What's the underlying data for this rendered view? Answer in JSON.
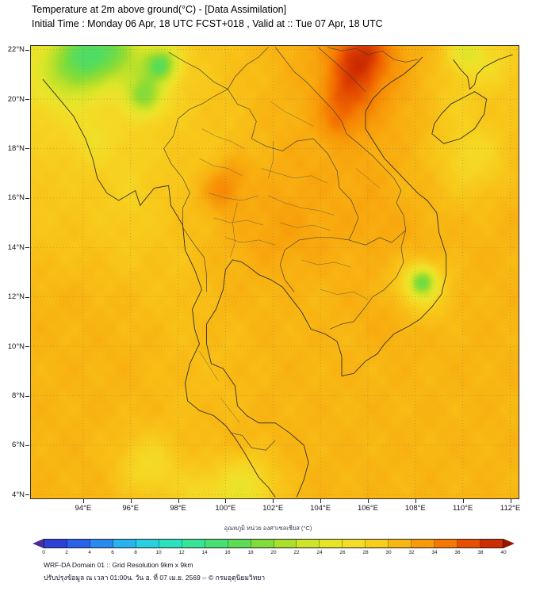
{
  "header": {
    "title": "Temperature at 2m above ground(°C) - [Data Assimilation]",
    "subtitle": "Initial Time : Monday 06 Apr, 18 UTC FCST+018 , Valid at :: Tue 07 Apr, 18 UTC"
  },
  "axes": {
    "lat": [
      {
        "label": "22°N",
        "value": 22
      },
      {
        "label": "20°N",
        "value": 20
      },
      {
        "label": "18°N",
        "value": 18
      },
      {
        "label": "16°N",
        "value": 16
      },
      {
        "label": "14°N",
        "value": 14
      },
      {
        "label": "12°N",
        "value": 12
      },
      {
        "label": "10°N",
        "value": 10
      },
      {
        "label": "8°N",
        "value": 8
      },
      {
        "label": "6°N",
        "value": 6
      },
      {
        "label": "4°N",
        "value": 4
      }
    ],
    "lon": [
      {
        "label": "94°E",
        "value": 94
      },
      {
        "label": "96°E",
        "value": 96
      },
      {
        "label": "98°E",
        "value": 98
      },
      {
        "label": "100°E",
        "value": 100
      },
      {
        "label": "102°E",
        "value": 102
      },
      {
        "label": "104°E",
        "value": 104
      },
      {
        "label": "106°E",
        "value": 106
      },
      {
        "label": "108°E",
        "value": 108
      },
      {
        "label": "110°E",
        "value": 110
      },
      {
        "label": "112°E",
        "value": 112
      }
    ]
  },
  "colorbar": {
    "label": "อุณหภูมิ หน่วย องศาเซลเซียส (°C)",
    "tick_labels": [
      "0",
      "2",
      "4",
      "6",
      "8",
      "10",
      "12",
      "14",
      "16",
      "18",
      "20",
      "22",
      "24",
      "26",
      "28",
      "30",
      "32",
      "34",
      "36",
      "38",
      "40"
    ],
    "under_color": "#4b2ca0",
    "over_color": "#9c1200"
  },
  "footer": {
    "line1": "WRF-DA Domain 01 :: Grid Resolution 9km x 9km",
    "line2": "ปรับปรุงข้อมูล ณ เวลา 01:00น. วัน อ. ที่ 07 เม.ย. 2569 -- © กรมอุตุนิยมวิทยา"
  },
  "chart_data": {
    "type": "heatmap",
    "title": "Temperature at 2m above ground (°C) - WRF-DA Domain 01",
    "units": "°C",
    "legend_position": "bottom",
    "lon_range": [
      91.8,
      112.35
    ],
    "lat_range": [
      3.85,
      22.15
    ],
    "value_range": [
      0,
      40
    ],
    "colormap_stops": [
      [
        0,
        "#3232c8"
      ],
      [
        2,
        "#2850e6"
      ],
      [
        4,
        "#2873f0"
      ],
      [
        6,
        "#28a0f0"
      ],
      [
        8,
        "#28c3ee"
      ],
      [
        10,
        "#28dcd2"
      ],
      [
        12,
        "#30e6aa"
      ],
      [
        14,
        "#3ce382"
      ],
      [
        16,
        "#50dc64"
      ],
      [
        18,
        "#6edc46"
      ],
      [
        20,
        "#96dc32"
      ],
      [
        22,
        "#bee12a"
      ],
      [
        24,
        "#dce628"
      ],
      [
        26,
        "#eee22a"
      ],
      [
        28,
        "#f6d723"
      ],
      [
        30,
        "#f8c318"
      ],
      [
        32,
        "#f8a90e"
      ],
      [
        34,
        "#f78c05"
      ],
      [
        36,
        "#f06400"
      ],
      [
        38,
        "#dc3c00"
      ],
      [
        40,
        "#be1e00"
      ]
    ],
    "grid": {
      "lons": [
        94,
        96,
        98,
        100,
        102,
        104,
        106,
        108,
        110,
        112
      ],
      "lats": [
        22,
        20,
        18,
        16,
        14,
        12,
        10,
        8,
        6,
        4
      ],
      "values": [
        [
          27.5,
          29,
          29,
          30,
          31,
          32,
          33.5,
          31.5,
          30,
          29.5
        ],
        [
          28,
          29,
          29,
          30,
          31,
          32,
          33.5,
          31.5,
          30.5,
          30
        ],
        [
          29,
          28.5,
          29.5,
          30,
          31,
          31.5,
          32,
          31,
          30,
          30.5
        ],
        [
          29.5,
          28.5,
          30,
          31,
          31,
          31,
          31.5,
          31,
          30.5,
          31
        ],
        [
          30,
          29.5,
          30,
          31,
          31.5,
          31.5,
          31,
          31.5,
          31,
          31
        ],
        [
          31,
          30.5,
          30,
          31,
          31,
          31,
          31.5,
          31,
          31,
          31
        ],
        [
          31,
          31,
          30.5,
          30.5,
          31,
          31,
          31,
          31,
          31,
          31
        ],
        [
          31,
          31,
          30.5,
          30.5,
          31,
          31,
          31,
          31,
          31,
          31
        ],
        [
          31,
          30.5,
          30.5,
          31,
          31,
          31,
          31,
          31,
          31,
          31
        ],
        [
          31,
          30.5,
          30,
          30.5,
          31,
          31,
          31,
          31,
          31,
          31
        ]
      ]
    },
    "anomalies": [
      [
        94.2,
        21.8,
        1.0,
        -9
      ],
      [
        95.4,
        22.2,
        0.8,
        -5
      ],
      [
        93.2,
        21.0,
        0.9,
        -4
      ],
      [
        97.3,
        21.4,
        0.5,
        -11
      ],
      [
        96.6,
        20.1,
        0.55,
        -9
      ],
      [
        96.1,
        21.2,
        0.7,
        -3
      ],
      [
        94.4,
        18.4,
        0.7,
        -2
      ],
      [
        105.4,
        21.3,
        0.8,
        3.5
      ],
      [
        105.0,
        20.0,
        0.65,
        3
      ],
      [
        104.7,
        19.0,
        0.5,
        2
      ],
      [
        105.9,
        21.9,
        0.8,
        3
      ],
      [
        99.8,
        16.3,
        0.55,
        3
      ],
      [
        100.4,
        17.1,
        0.45,
        1.5
      ],
      [
        108.3,
        12.6,
        0.4,
        -10
      ],
      [
        108.2,
        12.3,
        0.85,
        -3.5
      ],
      [
        110.5,
        17.6,
        1.0,
        -2.5
      ],
      [
        110.1,
        21.9,
        0.55,
        -5
      ],
      [
        111.2,
        21.3,
        0.7,
        -2
      ],
      [
        96.8,
        5.2,
        0.8,
        -3
      ],
      [
        100.8,
        4.2,
        0.9,
        -5
      ],
      [
        98.9,
        4.0,
        0.7,
        -2
      ],
      [
        103.5,
        16.0,
        1.6,
        0.8
      ],
      [
        101.9,
        15.0,
        1.2,
        0.7
      ],
      [
        106.5,
        14.8,
        1.0,
        0.7
      ],
      [
        107.2,
        11.0,
        0.8,
        0.8
      ],
      [
        109.6,
        20.0,
        0.8,
        -1.5
      ]
    ]
  }
}
